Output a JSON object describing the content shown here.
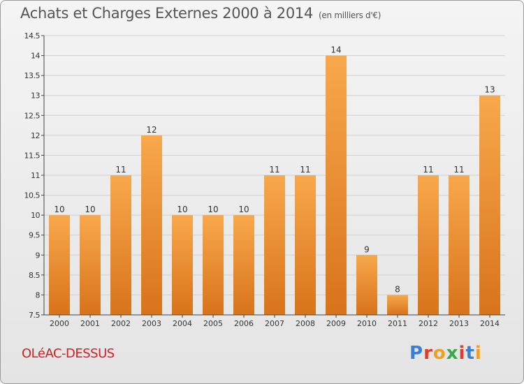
{
  "title": "Achats et Charges Externes 2000 à 2014",
  "subtitle": "(en milliers d'€)",
  "commune": "OLéAC-DESSUS",
  "logo": {
    "text": "Proxiti",
    "letter_colors": [
      "#3a7fd5",
      "#e03c2c",
      "#f0a020",
      "#3aa84a",
      "#e03c2c",
      "#3a7fd5",
      "#f0a020"
    ]
  },
  "colors": {
    "bar_top": "#f8a84c",
    "bar_bottom": "#d8731a",
    "axis": "#444444",
    "grid": "#d0d0d0"
  },
  "chart_data": {
    "type": "bar",
    "categories": [
      "2000",
      "2001",
      "2002",
      "2003",
      "2004",
      "2005",
      "2006",
      "2007",
      "2008",
      "2009",
      "2010",
      "2011",
      "2012",
      "2013",
      "2014"
    ],
    "values": [
      10,
      10,
      11,
      12,
      10,
      10,
      10,
      11,
      11,
      14,
      9,
      8,
      11,
      11,
      13
    ],
    "data_labels": [
      "10",
      "10",
      "11",
      "12",
      "10",
      "10",
      "10",
      "11",
      "11",
      "14",
      "9",
      "8",
      "11",
      "11",
      "13"
    ],
    "ylim": [
      7.5,
      14.5
    ],
    "yticks": [
      7.5,
      8,
      8.5,
      9,
      9.5,
      10,
      10.5,
      11,
      11.5,
      12,
      12.5,
      13,
      13.5,
      14,
      14.5
    ],
    "ytick_labels": [
      "7.5",
      "8",
      "8.5",
      "9",
      "9.5",
      "10",
      "10.5",
      "11",
      "11.5",
      "12",
      "12.5",
      "13",
      "13.5",
      "14",
      "14.5"
    ],
    "grid": true,
    "xlabel": "",
    "ylabel": ""
  }
}
